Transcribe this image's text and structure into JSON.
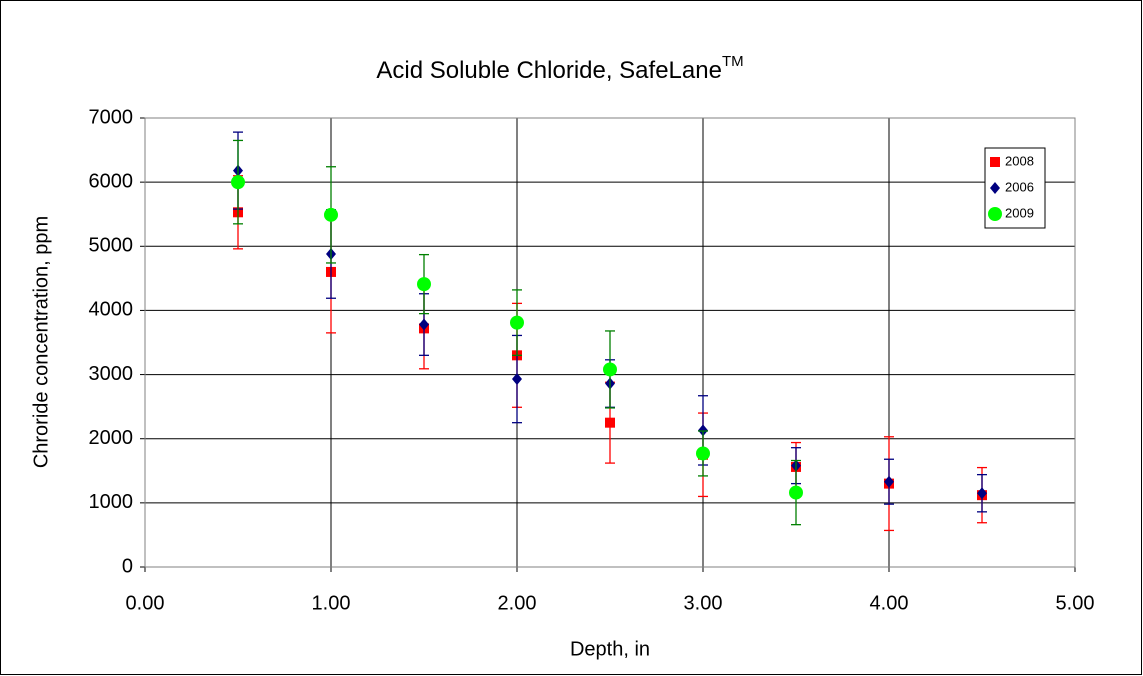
{
  "chart_data": {
    "type": "scatter",
    "title": "Acid Soluble Chloride, SafeLane",
    "title_superscript": "TM",
    "x_label": "Depth, in",
    "y_label": "Chroride concentration, ppm",
    "xlim": [
      0,
      5
    ],
    "xticks": [
      {
        "value": 0,
        "label": "0.00"
      },
      {
        "value": 1,
        "label": "1.00"
      },
      {
        "value": 2,
        "label": "2.00"
      },
      {
        "value": 3,
        "label": "3.00"
      },
      {
        "value": 4,
        "label": "4.00"
      },
      {
        "value": 5,
        "label": "5.00"
      }
    ],
    "ylim": [
      0,
      7000
    ],
    "yticks": [
      0,
      1000,
      2000,
      3000,
      4000,
      5000,
      6000,
      7000
    ],
    "grid": true,
    "legend": "upper right",
    "series": [
      {
        "name": "2008",
        "color": "#ff0000",
        "marker": "square",
        "x": [
          0.5,
          1.0,
          1.5,
          2.0,
          2.5,
          3.0,
          3.5,
          4.0,
          4.5
        ],
        "values": [
          5530,
          4600,
          3720,
          3300,
          2250,
          1750,
          1560,
          1300,
          1120
        ],
        "errors": [
          570,
          950,
          630,
          810,
          630,
          650,
          380,
          730,
          430
        ]
      },
      {
        "name": "2006",
        "color": "#000080",
        "marker": "diamond",
        "x": [
          0.5,
          1.0,
          1.5,
          2.0,
          2.5,
          3.0,
          3.5,
          4.0,
          4.5
        ],
        "values": [
          6180,
          4880,
          3780,
          2930,
          2860,
          2130,
          1580,
          1330,
          1150
        ],
        "errors": [
          600,
          690,
          480,
          680,
          370,
          540,
          280,
          350,
          290
        ]
      },
      {
        "name": "2009",
        "color": "#00ff00",
        "error_color": "#008000",
        "marker": "circle",
        "x": [
          0.5,
          1.0,
          1.5,
          2.0,
          2.5,
          3.0,
          3.5
        ],
        "values": [
          6000,
          5490,
          4410,
          3810,
          3080,
          1770,
          1160
        ],
        "errors": [
          650,
          750,
          460,
          510,
          600,
          350,
          500
        ]
      }
    ]
  }
}
